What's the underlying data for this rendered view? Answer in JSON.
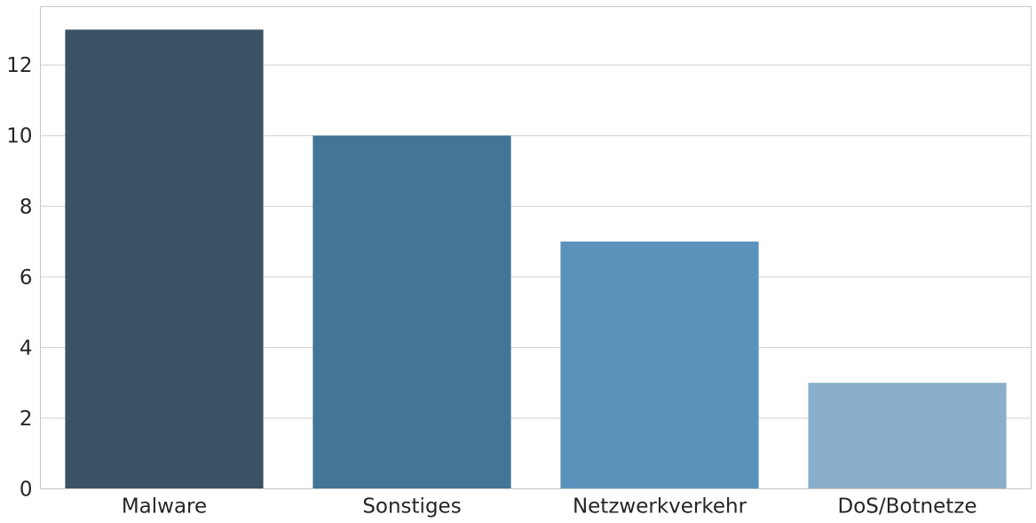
{
  "chart_data": {
    "type": "bar",
    "categories": [
      "Malware",
      "Sonstiges",
      "Netzwerkverkehr",
      "DoS/Botnetze"
    ],
    "values": [
      13,
      10,
      7,
      3
    ],
    "colors": [
      "#3b5266",
      "#437596",
      "#5b92bb",
      "#89afcb"
    ],
    "title": "",
    "xlabel": "",
    "ylabel": "",
    "ylim": [
      0,
      13.65
    ],
    "yticks": [
      0,
      2,
      4,
      6,
      8,
      10,
      12
    ],
    "grid": "horizontal"
  }
}
